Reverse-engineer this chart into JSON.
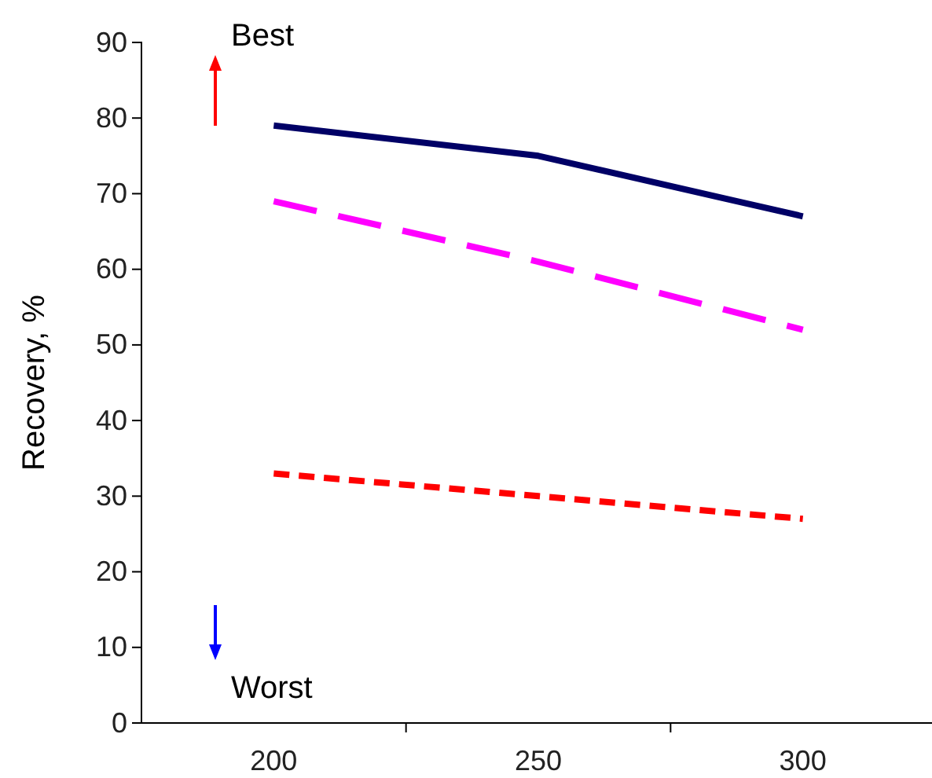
{
  "chart_data": {
    "type": "line",
    "ylabel": "Recovery, %",
    "categories": [
      "200",
      "250",
      "300"
    ],
    "series": [
      {
        "color": "#000066",
        "values": [
          79,
          75,
          67
        ],
        "line_style": "solid"
      },
      {
        "color": "#ff00ff",
        "values": [
          69,
          61,
          52
        ],
        "line_style": "dashed"
      },
      {
        "color": "#ff0000",
        "values": [
          33,
          30,
          27
        ],
        "line_style": "dotted"
      }
    ],
    "ylim": [
      0,
      90
    ],
    "yticks": [
      0,
      10,
      20,
      30,
      40,
      50,
      60,
      70,
      80,
      90
    ],
    "annotations": [
      "Best",
      "Worst"
    ],
    "grid": false,
    "marker": "none"
  }
}
